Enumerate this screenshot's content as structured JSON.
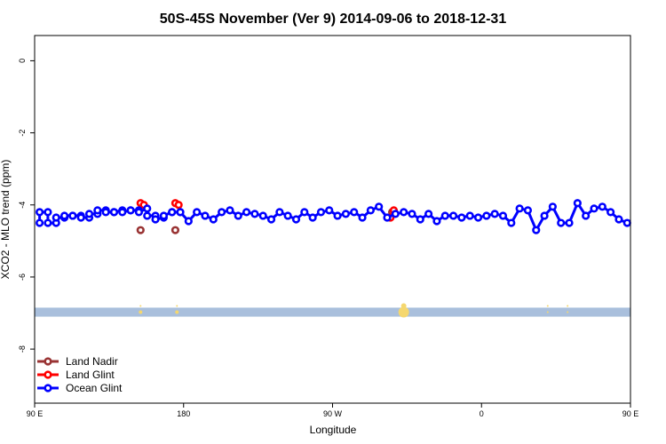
{
  "chart_data": {
    "type": "scatter",
    "title": "50S-45S November (Ver 9)   2014-09-06 to 2018-12-31",
    "xlabel": "Longitude",
    "ylabel": "XCO2 - MLO trend (ppm)",
    "x_domain_deg": [
      90,
      450
    ],
    "ylim": [
      -9.5,
      0.7
    ],
    "x_ticks": [
      {
        "value": 90,
        "label": "90 E"
      },
      {
        "value": 180,
        "label": "180"
      },
      {
        "value": 270,
        "label": "90 W"
      },
      {
        "value": 360,
        "label": "0"
      },
      {
        "value": 450,
        "label": "90 E"
      },
      {
        "value": 540,
        "label": "180"
      }
    ],
    "y_ticks": [
      {
        "value": 0,
        "label": "0"
      },
      {
        "value": -2,
        "label": "-2"
      },
      {
        "value": -4,
        "label": "-4"
      },
      {
        "value": -6,
        "label": "-6"
      },
      {
        "value": -8,
        "label": "-8"
      }
    ],
    "grid": false,
    "legend_position": "bottom-left",
    "legend": [
      {
        "label": "Land Nadir",
        "color": "#993333"
      },
      {
        "label": "Land Glint",
        "color": "#ff0000"
      },
      {
        "label": "Ocean Glint",
        "color": "#0000ff"
      }
    ],
    "land_band": {
      "y_range": [
        -6.85,
        -7.1
      ],
      "color": "#a9bfdc",
      "land_color": "#f5d76e"
    },
    "land_marks_x": [
      {
        "x": 176,
        "size": 2
      },
      {
        "x": 313,
        "size": 6
      },
      {
        "x": 400,
        "size": 1
      },
      {
        "x": 412,
        "size": 1
      },
      {
        "x": 514,
        "size": 2
      }
    ],
    "series": [
      {
        "name": "Ocean Glint",
        "color": "#0000ff",
        "x": [
          93,
          98,
          103,
          108,
          113,
          118,
          123,
          128,
          133,
          138,
          143,
          148,
          153,
          158,
          163,
          168,
          173,
          178,
          183,
          188,
          193,
          198,
          203,
          208,
          213,
          218,
          223,
          228,
          233,
          238,
          243,
          248,
          253,
          258,
          263,
          268,
          273,
          278,
          283,
          288,
          293,
          298,
          303,
          308,
          313,
          318,
          323,
          328,
          333,
          338,
          343,
          348,
          353,
          358,
          363,
          368,
          373,
          378,
          383,
          388,
          393,
          398,
          403,
          408,
          413,
          418,
          423,
          428,
          433,
          438,
          443,
          448,
          453,
          458,
          463,
          468,
          473,
          478,
          483,
          488,
          493,
          498,
          503,
          508,
          513,
          518,
          523,
          528,
          533,
          538
        ],
        "values": [
          -4.5,
          -4.2,
          -4.5,
          -4.35,
          -4.3,
          -4.3,
          -4.35,
          -4.25,
          -4.15,
          -4.2,
          -4.15,
          -4.15,
          -4.15,
          -4.1,
          -4.3,
          -4.35,
          -4.2,
          -4.2,
          -4.45,
          -4.2,
          -4.3,
          -4.4,
          -4.2,
          -4.15,
          -4.3,
          -4.2,
          -4.25,
          -4.3,
          -4.4,
          -4.2,
          -4.3,
          -4.4,
          -4.2,
          -4.35,
          -4.2,
          -4.15,
          -4.3,
          -4.25,
          -4.2,
          -4.35,
          -4.15,
          -4.05,
          -4.35,
          -4.25,
          -4.2,
          -4.25,
          -4.4,
          -4.25,
          -4.45,
          -4.3,
          -4.3,
          -4.35,
          -4.3,
          -4.35,
          -4.3,
          -4.25,
          -4.3,
          -4.5,
          -4.1,
          -4.15,
          -4.7,
          -4.3,
          -4.05,
          -4.5,
          -4.5,
          -3.95,
          -4.3,
          -4.1,
          -4.05,
          -4.2,
          -4.4,
          -4.5,
          -4.2,
          -4.5,
          -4.35,
          -4.3,
          -4.3,
          -4.35,
          -4.25,
          -4.15,
          -4.2,
          -4.2,
          -4.2,
          -4.15,
          -4.2,
          -4.3,
          -4.4,
          -4.3,
          -4.2,
          -4.2
        ]
      },
      {
        "name": "Land Glint",
        "color": "#ff0000",
        "x": [
          175,
          177,
          305,
          307,
          514,
          516
        ],
        "values": [
          -3.95,
          -4.0,
          -4.35,
          -4.15,
          -3.95,
          -4.0
        ]
      },
      {
        "name": "Land Nadir",
        "color": "#993333",
        "x": [
          175,
          306,
          514
        ],
        "values": [
          -4.7,
          -4.2,
          -4.7
        ]
      }
    ]
  }
}
